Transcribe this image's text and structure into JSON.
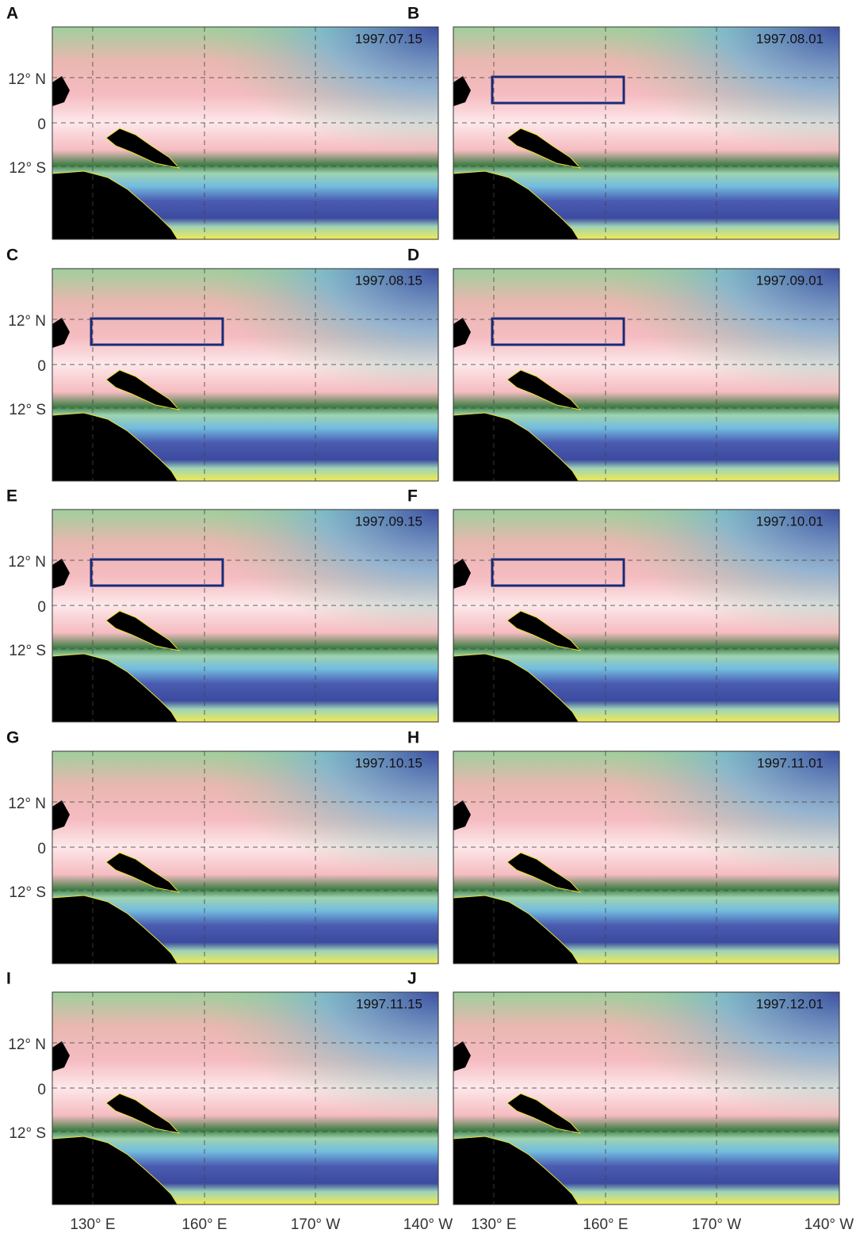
{
  "panels": [
    {
      "letter": "A",
      "date": "1997.07.15"
    },
    {
      "letter": "B",
      "date": "1997.08.01"
    },
    {
      "letter": "C",
      "date": "1997.08.15"
    },
    {
      "letter": "D",
      "date": "1997.09.01"
    },
    {
      "letter": "E",
      "date": "1997.09.15"
    },
    {
      "letter": "F",
      "date": "1997.10.01"
    },
    {
      "letter": "G",
      "date": "1997.10.15"
    },
    {
      "letter": "H",
      "date": "1997.11.01"
    },
    {
      "letter": "I",
      "date": "1997.11.15"
    },
    {
      "letter": "J",
      "date": "1997.12.01"
    }
  ],
  "lat_labels": [
    "12° N",
    "0",
    "12° S"
  ],
  "lon_labels": [
    "130° E",
    "160° E",
    "170° W",
    "140° W"
  ]
}
